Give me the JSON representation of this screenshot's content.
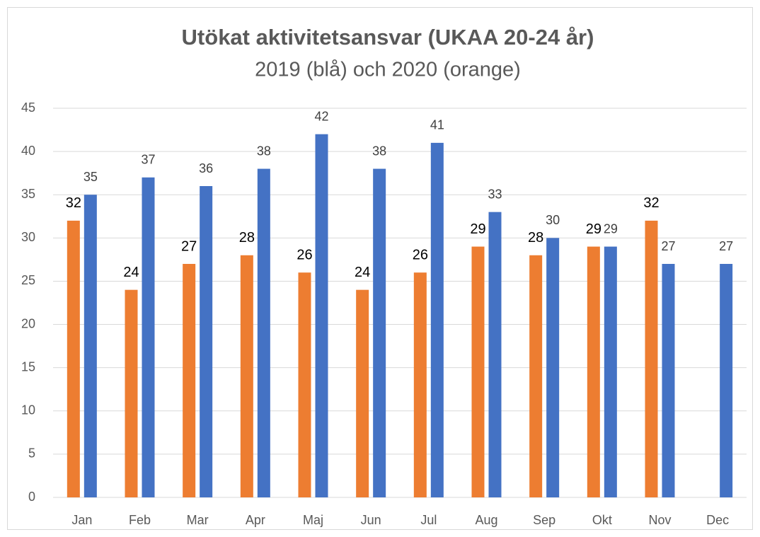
{
  "chart_data": {
    "type": "bar",
    "title": "Utökat aktivitetsansvar (UKAA 20-24 år)",
    "subtitle": "2019 (blå) och 2020 (orange)",
    "categories": [
      "Jan",
      "Feb",
      "Mar",
      "Apr",
      "Maj",
      "Jun",
      "Jul",
      "Aug",
      "Sep",
      "Okt",
      "Nov",
      "Dec"
    ],
    "series": [
      {
        "color": "#ed7d31",
        "values": [
          32,
          24,
          27,
          28,
          26,
          24,
          26,
          29,
          28,
          29,
          32,
          null
        ]
      },
      {
        "color": "#4472c4",
        "values": [
          35,
          37,
          36,
          38,
          42,
          38,
          41,
          33,
          30,
          29,
          27,
          27
        ]
      }
    ],
    "ylim": [
      0,
      45
    ],
    "yticks": [
      0,
      5,
      10,
      15,
      20,
      25,
      30,
      35,
      40,
      45
    ],
    "grid": true
  }
}
